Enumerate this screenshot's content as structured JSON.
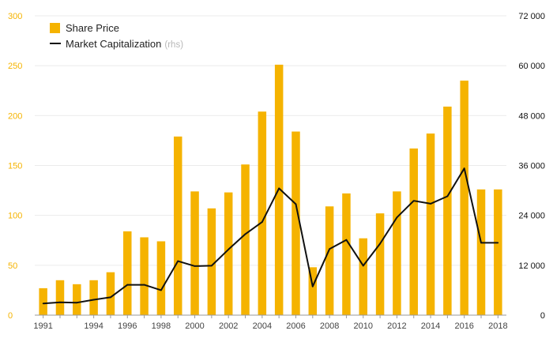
{
  "chart_data": {
    "type": "bar",
    "x": [
      1991,
      1992,
      1993,
      1994,
      1995,
      1996,
      1997,
      1998,
      1999,
      2000,
      2001,
      2002,
      2003,
      2004,
      2005,
      2006,
      2007,
      2008,
      2009,
      2010,
      2011,
      2012,
      2013,
      2014,
      2015,
      2016,
      2017,
      2018
    ],
    "x_tick_labels": [
      "1991",
      "1994",
      "1996",
      "1998",
      "2000",
      "2002",
      "2004",
      "2006",
      "2008",
      "2010",
      "2012",
      "2014",
      "2016",
      "2018"
    ],
    "series": [
      {
        "name": "Share Price",
        "type": "bar",
        "axis": "left",
        "color": "#f5b300",
        "values": [
          27,
          35,
          31,
          35,
          43,
          84,
          78,
          74,
          179,
          124,
          107,
          123,
          151,
          204,
          251,
          184,
          48,
          109,
          122,
          77,
          102,
          124,
          167,
          182,
          209,
          235,
          126,
          126
        ]
      },
      {
        "name": "Market Capitalization",
        "name_note": "(rhs)",
        "type": "line",
        "axis": "right",
        "color": "#111111",
        "values": [
          2800,
          3100,
          3000,
          3700,
          4300,
          7300,
          7300,
          6000,
          13000,
          11800,
          11900,
          15800,
          19500,
          22400,
          30500,
          26700,
          6900,
          15900,
          18100,
          11900,
          17200,
          23500,
          27500,
          26800,
          28600,
          35300,
          17400,
          17400
        ]
      }
    ],
    "y_left": {
      "lim": [
        0,
        300
      ],
      "ticks": [
        "0",
        "50",
        "100",
        "150",
        "200",
        "250",
        "300"
      ],
      "values": [
        0,
        50,
        100,
        150,
        200,
        250,
        300
      ]
    },
    "y_right": {
      "lim": [
        0,
        72000
      ],
      "ticks": [
        "0",
        "12 000",
        "24 000",
        "36 000",
        "48 000",
        "60 000",
        "72 000"
      ],
      "values": [
        0,
        12000,
        24000,
        36000,
        48000,
        60000,
        72000
      ]
    },
    "grid": true,
    "legend_position": "top-left"
  }
}
